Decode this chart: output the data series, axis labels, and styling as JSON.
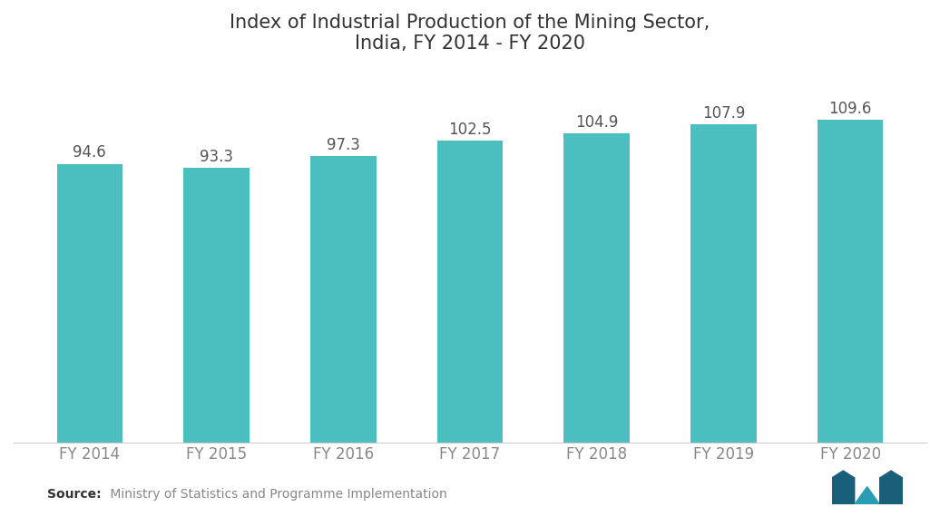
{
  "title": "Index of Industrial Production of the Mining Sector,\nIndia, FY 2014 - FY 2020",
  "categories": [
    "FY 2014",
    "FY 2015",
    "FY 2016",
    "FY 2017",
    "FY 2018",
    "FY 2019",
    "FY 2020"
  ],
  "values": [
    94.6,
    93.3,
    97.3,
    102.5,
    104.9,
    107.9,
    109.6
  ],
  "bar_color": "#4BBFBF",
  "background_color": "#ffffff",
  "title_fontsize": 15,
  "label_fontsize": 12,
  "tick_fontsize": 12,
  "source_bold": "Source:",
  "source_rest": " Ministry of Statistics and Programme Implementation",
  "ylim_min": 0,
  "ylim_max": 125,
  "value_label_color": "#555555",
  "axis_label_color": "#888888",
  "title_color": "#333333",
  "bar_width": 0.52
}
